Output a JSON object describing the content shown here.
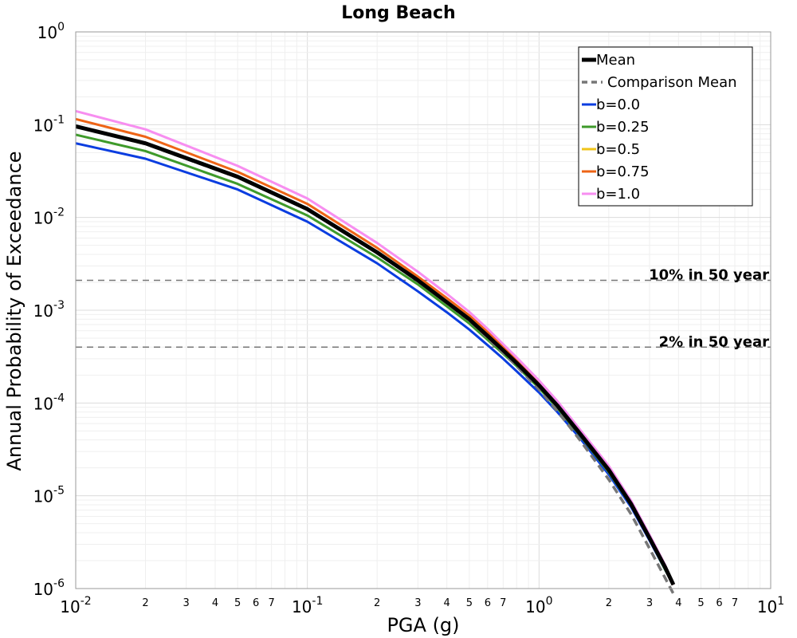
{
  "chart_data": {
    "type": "line",
    "title": "Long Beach",
    "xlabel": "PGA (g)",
    "ylabel": "Annual Probability of Exceedance",
    "xscale": "log",
    "yscale": "log",
    "xlim": [
      0.01,
      10
    ],
    "ylim": [
      1e-06,
      1
    ],
    "grid": true,
    "legend_position": "top-right",
    "x_major_ticks": [
      {
        "value": 0.01,
        "base": "10",
        "exp": "-2"
      },
      {
        "value": 0.1,
        "base": "10",
        "exp": "-1"
      },
      {
        "value": 1,
        "base": "10",
        "exp": "0"
      },
      {
        "value": 10,
        "base": "10",
        "exp": "1"
      }
    ],
    "x_minor_tick_labels": [
      "2",
      "3",
      "4",
      "5",
      "6",
      "7"
    ],
    "y_major_ticks": [
      {
        "value": 1,
        "base": "10",
        "exp": "0"
      },
      {
        "value": 0.1,
        "base": "10",
        "exp": "-1"
      },
      {
        "value": 0.01,
        "base": "10",
        "exp": "-2"
      },
      {
        "value": 0.001,
        "base": "10",
        "exp": "-3"
      },
      {
        "value": 0.0001,
        "base": "10",
        "exp": "-4"
      },
      {
        "value": 1e-05,
        "base": "10",
        "exp": "-5"
      },
      {
        "value": 1e-06,
        "base": "10",
        "exp": "-6"
      }
    ],
    "reference_lines": [
      {
        "label": "10% in 50 year",
        "y": 0.0021,
        "color": "#777777"
      },
      {
        "label": "2% in 50 year",
        "y": 0.0004,
        "color": "#777777"
      }
    ],
    "series": [
      {
        "name": "b=0.0",
        "color": "#0a3de0",
        "width": 3,
        "dash": "solid",
        "x": [
          0.01,
          0.02,
          0.05,
          0.1,
          0.2,
          0.3,
          0.4,
          0.5,
          0.6,
          0.7,
          0.8,
          1.0,
          1.2,
          1.5,
          2.0,
          2.5,
          3.0,
          3.5,
          3.8
        ],
        "y": [
          0.063,
          0.043,
          0.02,
          0.009,
          0.0032,
          0.0016,
          0.00095,
          0.00062,
          0.00042,
          0.0003,
          0.00022,
          0.00013,
          8e-05,
          4.2e-05,
          1.7e-05,
          7.5e-06,
          3.3e-06,
          1.6e-06,
          1.1e-06
        ]
      },
      {
        "name": "b=0.25",
        "color": "#3e9a2a",
        "width": 3,
        "dash": "solid",
        "x": [
          0.01,
          0.02,
          0.05,
          0.1,
          0.2,
          0.3,
          0.4,
          0.5,
          0.6,
          0.7,
          0.8,
          1.0,
          1.2,
          1.5,
          2.0,
          2.5,
          3.0,
          3.5,
          3.8
        ],
        "y": [
          0.078,
          0.052,
          0.023,
          0.0105,
          0.0037,
          0.0019,
          0.0011,
          0.00072,
          0.00048,
          0.00034,
          0.00025,
          0.000145,
          8.8e-05,
          4.5e-05,
          1.8e-05,
          7.8e-06,
          3.4e-06,
          1.6e-06,
          1.1e-06
        ]
      },
      {
        "name": "b=0.5",
        "color": "#f0c419",
        "width": 3,
        "dash": "solid",
        "x": [
          0.01,
          0.02,
          0.05,
          0.1,
          0.2,
          0.3,
          0.4,
          0.5,
          0.6,
          0.7,
          0.8,
          1.0,
          1.2,
          1.5,
          2.0,
          2.5,
          3.0,
          3.5,
          3.8
        ],
        "y": [
          0.095,
          0.062,
          0.027,
          0.0122,
          0.0042,
          0.0021,
          0.00122,
          0.0008,
          0.00053,
          0.00037,
          0.00027,
          0.000155,
          9.4e-05,
          4.7e-05,
          1.9e-05,
          8.1e-06,
          3.5e-06,
          1.7e-06,
          1.1e-06
        ]
      },
      {
        "name": "b=0.75",
        "color": "#ee6416",
        "width": 3,
        "dash": "solid",
        "x": [
          0.01,
          0.02,
          0.05,
          0.1,
          0.2,
          0.3,
          0.4,
          0.5,
          0.6,
          0.7,
          0.8,
          1.0,
          1.2,
          1.5,
          2.0,
          2.5,
          3.0,
          3.5,
          3.8
        ],
        "y": [
          0.115,
          0.074,
          0.031,
          0.014,
          0.0047,
          0.0023,
          0.00135,
          0.00088,
          0.00058,
          0.0004,
          0.00029,
          0.000165,
          0.0001,
          5e-05,
          2e-05,
          8.5e-06,
          3.7e-06,
          1.7e-06,
          1.1e-06
        ]
      },
      {
        "name": "b=1.0",
        "color": "#f78ef0",
        "width": 3,
        "dash": "solid",
        "x": [
          0.01,
          0.02,
          0.05,
          0.1,
          0.2,
          0.3,
          0.4,
          0.5,
          0.6,
          0.7,
          0.8,
          1.0,
          1.2,
          1.5,
          2.0,
          2.5,
          3.0,
          3.5,
          3.8
        ],
        "y": [
          0.14,
          0.089,
          0.036,
          0.016,
          0.0053,
          0.0026,
          0.0015,
          0.00096,
          0.00063,
          0.00043,
          0.00031,
          0.000175,
          0.000105,
          5.2e-05,
          2.1e-05,
          8.8e-06,
          3.8e-06,
          1.8e-06,
          1.1e-06
        ]
      },
      {
        "name": "Comparison Mean",
        "color": "#777777",
        "width": 3.5,
        "dash": "dashed",
        "x": [
          0.01,
          0.02,
          0.05,
          0.1,
          0.2,
          0.3,
          0.4,
          0.5,
          0.6,
          0.7,
          0.8,
          1.0,
          1.2,
          1.5,
          2.0,
          2.5,
          3.0,
          3.5,
          3.8
        ],
        "y": [
          0.095,
          0.062,
          0.027,
          0.0122,
          0.0042,
          0.0021,
          0.0012,
          0.00078,
          0.0005,
          0.00035,
          0.00025,
          0.00014,
          8.2e-05,
          4e-05,
          1.5e-05,
          6.3e-06,
          2.7e-06,
          1.3e-06,
          8.8e-07
        ]
      },
      {
        "name": "Mean",
        "color": "#000000",
        "width": 5,
        "dash": "solid",
        "x": [
          0.01,
          0.02,
          0.05,
          0.1,
          0.2,
          0.3,
          0.4,
          0.5,
          0.6,
          0.7,
          0.8,
          1.0,
          1.2,
          1.5,
          2.0,
          2.5,
          3.0,
          3.5,
          3.8
        ],
        "y": [
          0.096,
          0.063,
          0.0275,
          0.0123,
          0.0042,
          0.0021,
          0.00122,
          0.0008,
          0.00053,
          0.00037,
          0.00027,
          0.000155,
          9.4e-05,
          4.7e-05,
          1.9e-05,
          8.1e-06,
          3.5e-06,
          1.7e-06,
          1.1e-06
        ]
      }
    ],
    "legend_order": [
      "Mean",
      "Comparison Mean",
      "b=0.0",
      "b=0.25",
      "b=0.5",
      "b=0.75",
      "b=1.0"
    ]
  }
}
